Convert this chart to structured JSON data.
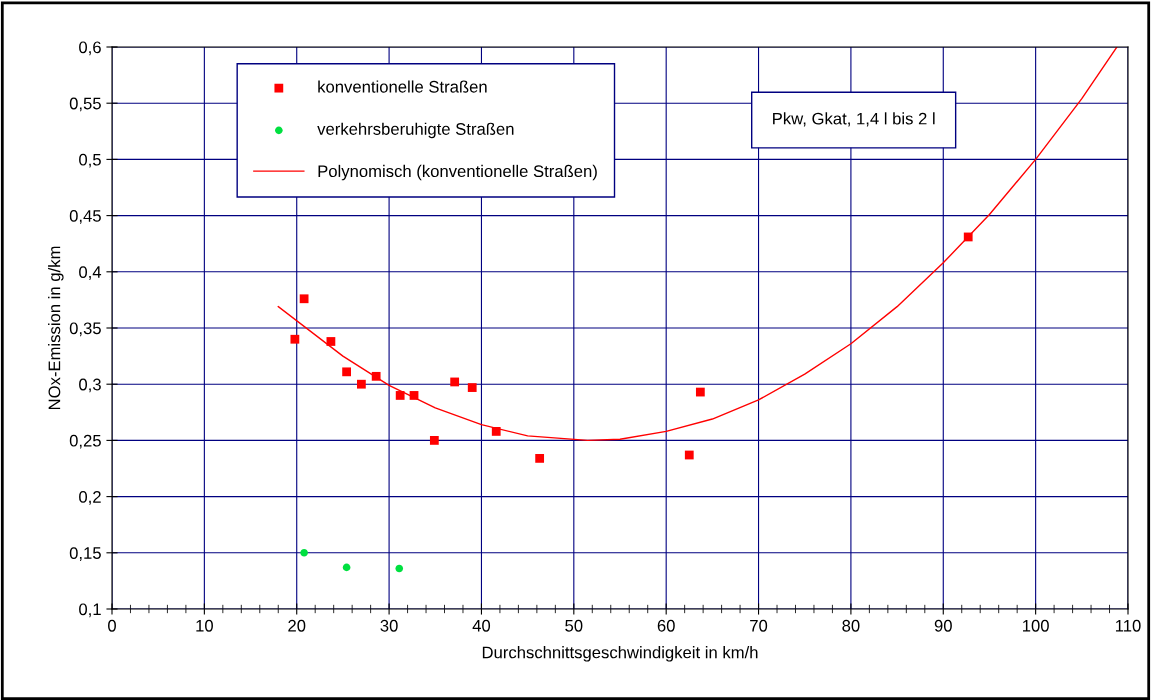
{
  "chart_data": {
    "type": "scatter",
    "xlabel": "Durchschnittsgeschwindigkeit in km/h",
    "ylabel": "NOx-Emission in g/km",
    "annotations": [
      "Pkw, Gkat, 1,4 l bis 2 l"
    ],
    "xlim": [
      0,
      110
    ],
    "ylim": [
      0.1,
      0.6
    ],
    "xticks": [
      0,
      {
        "value": 2,
        "label": null
      },
      {
        "value": 4,
        "label": null
      },
      {
        "value": 6,
        "label": null
      },
      {
        "value": 8,
        "label": null
      },
      10,
      {
        "value": 12,
        "label": null
      },
      {
        "value": 14,
        "label": null
      },
      {
        "value": 16,
        "label": null
      },
      {
        "value": 18,
        "label": null
      },
      20,
      {
        "value": 22,
        "label": null
      },
      {
        "value": 24,
        "label": null
      },
      {
        "value": 26,
        "label": null
      },
      {
        "value": 28,
        "label": null
      },
      30,
      {
        "value": 32,
        "label": null
      },
      {
        "value": 34,
        "label": null
      },
      {
        "value": 36,
        "label": null
      },
      {
        "value": 38,
        "label": null
      },
      40,
      {
        "value": 42,
        "label": null
      },
      {
        "value": 44,
        "label": null
      },
      {
        "value": 46,
        "label": null
      },
      {
        "value": 48,
        "label": null
      },
      50,
      {
        "value": 52,
        "label": null
      },
      {
        "value": 54,
        "label": null
      },
      {
        "value": 56,
        "label": null
      },
      {
        "value": 58,
        "label": null
      },
      60,
      {
        "value": 62,
        "label": null
      },
      {
        "value": 64,
        "label": null
      },
      {
        "value": 66,
        "label": null
      },
      {
        "value": 68,
        "label": null
      },
      70,
      {
        "value": 72,
        "label": null
      },
      {
        "value": 74,
        "label": null
      },
      {
        "value": 76,
        "label": null
      },
      {
        "value": 78,
        "label": null
      },
      80,
      {
        "value": 82,
        "label": null
      },
      {
        "value": 84,
        "label": null
      },
      {
        "value": 86,
        "label": null
      },
      {
        "value": 88,
        "label": null
      },
      90,
      {
        "value": 92,
        "label": null
      },
      {
        "value": 94,
        "label": null
      },
      {
        "value": 96,
        "label": null
      },
      {
        "value": 98,
        "label": null
      },
      100,
      {
        "value": 102,
        "label": null
      },
      {
        "value": 104,
        "label": null
      },
      {
        "value": 106,
        "label": null
      },
      {
        "value": 108,
        "label": null
      },
      110
    ],
    "yticks": [
      {
        "value": 0.1,
        "label": "0,1"
      },
      {
        "value": 0.15,
        "label": "0,15"
      },
      {
        "value": 0.2,
        "label": "0,2"
      },
      {
        "value": 0.25,
        "label": "0,25"
      },
      {
        "value": 0.3,
        "label": "0,3"
      },
      {
        "value": 0.35,
        "label": "0,35"
      },
      {
        "value": 0.4,
        "label": "0,4"
      },
      {
        "value": 0.45,
        "label": "0,45"
      },
      {
        "value": 0.5,
        "label": "0,5"
      },
      {
        "value": 0.55,
        "label": "0,55"
      },
      {
        "value": 0.6,
        "label": "0,6"
      }
    ],
    "grid": true,
    "legend": "top left",
    "series": [
      {
        "name": "konventionelle Straßen",
        "marker": "square",
        "color": "#ff0000",
        "x": [
          19.8,
          20.8,
          23.7,
          25.4,
          27.0,
          28.6,
          31.2,
          32.7,
          34.9,
          37.1,
          39.0,
          41.6,
          46.3,
          62.5,
          63.7,
          92.7
        ],
        "values": [
          0.34,
          0.376,
          0.338,
          0.311,
          0.3,
          0.307,
          0.29,
          0.29,
          0.25,
          0.302,
          0.297,
          0.258,
          0.234,
          0.237,
          0.293,
          0.431
        ]
      },
      {
        "name": "verkehrsberuhigte Straßen",
        "marker": "circle",
        "color": "#00e040",
        "x": [
          20.8,
          25.4,
          31.1
        ],
        "values": [
          0.15,
          0.137,
          0.136
        ]
      },
      {
        "name": "Polynomisch (konventionelle Straßen)",
        "type": "line",
        "marker": "none",
        "color": "#ff0000",
        "x": [
          18,
          25,
          30,
          35,
          40,
          45,
          51.5,
          55,
          60,
          65,
          70,
          75,
          80,
          85,
          90,
          95,
          100,
          105,
          108.8
        ],
        "values": [
          0.369,
          0.325,
          0.299,
          0.279,
          0.264,
          0.254,
          0.25,
          0.251,
          0.258,
          0.269,
          0.286,
          0.309,
          0.336,
          0.369,
          0.408,
          0.451,
          0.5,
          0.554,
          0.6
        ]
      }
    ]
  }
}
